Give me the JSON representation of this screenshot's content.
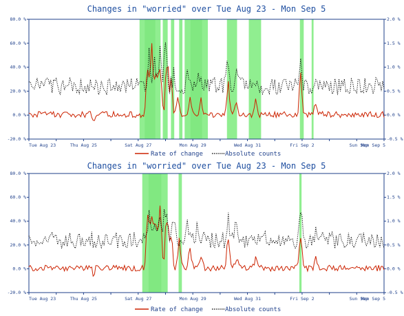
{
  "chart_data": [
    {
      "type": "line",
      "title": "Changes in \"worried\" over Tue Aug 23 - Mon Sep  5",
      "x_ticks": [
        "Tue Aug 23",
        "Thu Aug 25",
        "Sat Aug 27",
        "Mon Aug 29",
        "Wed Aug 31",
        "Fri Sep  2",
        "Sun Sep",
        "Mon Sep  5"
      ],
      "y_left_ticks": [
        "80.0 %",
        "60.0 %",
        "40.0 %",
        "20.0 %",
        "0.0 %",
        "-20.0 %"
      ],
      "y_right_ticks": [
        "2.0 %",
        "1.5 %",
        "1.0 %",
        "0.5 %",
        "0.0 %",
        "-0.5 %"
      ],
      "ylim_left": [
        -20,
        80
      ],
      "ylim_right": [
        -0.5,
        2.0
      ],
      "legend": [
        "Rate of change",
        "Absolute counts"
      ],
      "legend_position": "bottom",
      "highlight_periods_days": [
        [
          4.05,
          4.82
        ],
        [
          4.9,
          5.08
        ],
        [
          5.2,
          5.32
        ],
        [
          5.5,
          5.62
        ],
        [
          5.7,
          6.55
        ],
        [
          7.25,
          7.62
        ],
        [
          8.05,
          8.5
        ],
        [
          9.92,
          10.06
        ],
        [
          10.35,
          10.42
        ]
      ],
      "series": [
        {
          "name": "Rate of change",
          "axis": "left",
          "color": "#cc2200",
          "style": "solid",
          "baseline": 0.5,
          "noise": 2.5,
          "peaks": [
            [
              4.35,
              42
            ],
            [
              4.5,
              50
            ],
            [
              4.65,
              40
            ],
            [
              4.8,
              46
            ],
            [
              5.05,
              48
            ],
            [
              5.2,
              28
            ],
            [
              5.45,
              12
            ],
            [
              5.9,
              14
            ],
            [
              6.3,
              15
            ],
            [
              7.3,
              24
            ],
            [
              7.6,
              8
            ],
            [
              8.3,
              10
            ],
            [
              9.95,
              28
            ],
            [
              10.5,
              8
            ]
          ]
        },
        {
          "name": "Absolute counts",
          "axis": "right",
          "color": "#000000",
          "style": "dotted",
          "baseline": 0.6,
          "noise": 0.18,
          "peaks": [
            [
              4.4,
              0.55
            ],
            [
              4.6,
              0.6
            ],
            [
              4.8,
              0.55
            ],
            [
              5.0,
              0.85
            ],
            [
              5.3,
              0.3
            ],
            [
              5.8,
              0.3
            ],
            [
              6.2,
              0.3
            ],
            [
              7.3,
              0.5
            ],
            [
              7.6,
              0.3
            ],
            [
              9.95,
              0.55
            ],
            [
              10.5,
              0.2
            ]
          ]
        }
      ]
    },
    {
      "type": "line",
      "title": "Changes in \"worried\" over Tue Aug 23 - Mon Sep  5",
      "x_ticks": [
        "Tue Aug 23",
        "Thu Aug 25",
        "Sat Aug 27",
        "Mon Aug 29",
        "Wed Aug 31",
        "Fri Sep  2",
        "Sun Sep",
        "Mon Sep  5"
      ],
      "y_left_ticks": [
        "80.0 %",
        "60.0 %",
        "40.0 %",
        "20.0 %",
        "0.0 %",
        "-20.0 %"
      ],
      "y_right_ticks": [
        "2.0 %",
        "1.5 %",
        "1.0 %",
        "0.5 %",
        "0.0 %",
        "-0.5 %"
      ],
      "ylim_left": [
        -20,
        80
      ],
      "ylim_right": [
        -0.5,
        2.0
      ],
      "legend": [
        "Rate of change",
        "Absolute counts"
      ],
      "legend_position": "bottom",
      "highlight_periods_days": [
        [
          4.15,
          5.08
        ],
        [
          5.48,
          5.6
        ],
        [
          9.9,
          9.98
        ]
      ],
      "series": [
        {
          "name": "Rate of change",
          "axis": "left",
          "color": "#cc2200",
          "style": "solid",
          "baseline": 0.5,
          "noise": 2.5,
          "peaks": [
            [
              4.35,
              42
            ],
            [
              4.5,
              50
            ],
            [
              4.65,
              40
            ],
            [
              4.8,
              46
            ],
            [
              5.05,
              48
            ],
            [
              5.2,
              28
            ],
            [
              5.5,
              22
            ],
            [
              5.9,
              14
            ],
            [
              6.3,
              15
            ],
            [
              7.3,
              24
            ],
            [
              7.6,
              8
            ],
            [
              8.3,
              10
            ],
            [
              9.95,
              28
            ],
            [
              10.5,
              8
            ]
          ]
        },
        {
          "name": "Absolute counts",
          "axis": "right",
          "color": "#000000",
          "style": "dotted",
          "baseline": 0.6,
          "noise": 0.18,
          "peaks": [
            [
              4.4,
              0.55
            ],
            [
              4.6,
              0.6
            ],
            [
              4.8,
              0.55
            ],
            [
              5.0,
              0.85
            ],
            [
              5.3,
              0.3
            ],
            [
              5.8,
              0.3
            ],
            [
              6.2,
              0.3
            ],
            [
              7.3,
              0.5
            ],
            [
              7.6,
              0.3
            ],
            [
              9.95,
              0.55
            ],
            [
              10.5,
              0.2
            ]
          ]
        }
      ]
    }
  ],
  "colors": {
    "highlight": "#90ee90",
    "highlight_dark": "#66dd66",
    "axis": "#1e3f8a",
    "title": "#1e4ea0"
  }
}
